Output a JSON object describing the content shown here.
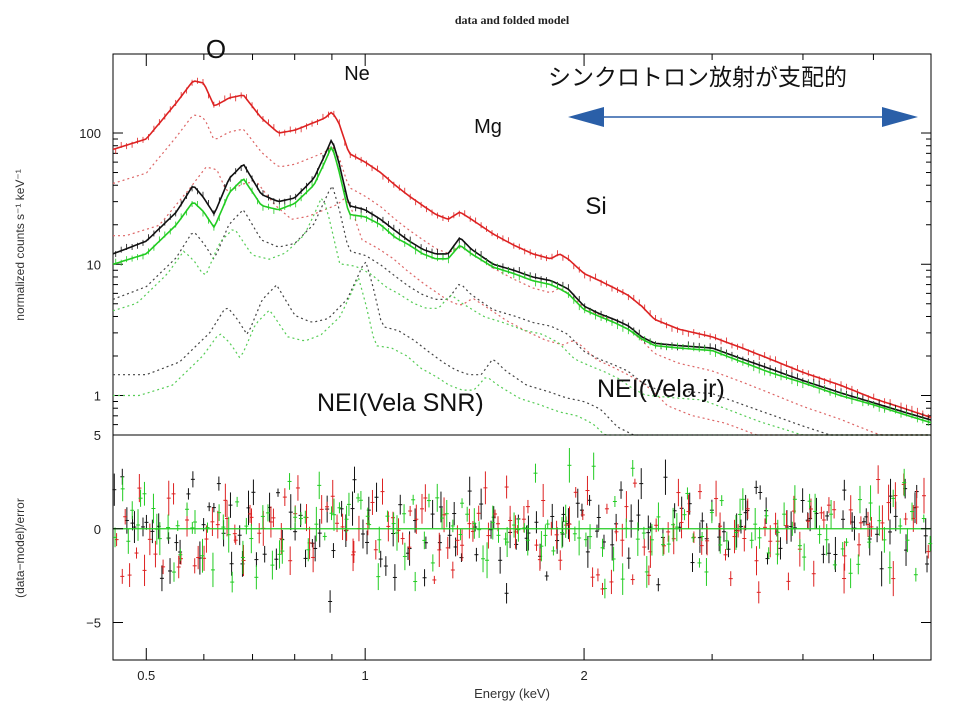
{
  "chart_data": [
    {
      "type": "line",
      "title": "data and folded model",
      "ylabel": "normalized counts s⁻¹ keV⁻¹",
      "y_scale": "log",
      "ylim": [
        0.5,
        400
      ],
      "xlim": [
        0.45,
        6.0
      ],
      "x_scale": "log",
      "y_ticks": [
        {
          "value": 1,
          "label": "1"
        },
        {
          "value": 10,
          "label": "10"
        },
        {
          "value": 100,
          "label": "100"
        }
      ],
      "grid": false,
      "series": [
        {
          "color": "#dd2222",
          "x": [
            0.45,
            0.5,
            0.55,
            0.58,
            0.6,
            0.62,
            0.65,
            0.68,
            0.72,
            0.76,
            0.8,
            0.85,
            0.88,
            0.9,
            0.92,
            0.95,
            1.0,
            1.05,
            1.1,
            1.15,
            1.2,
            1.25,
            1.3,
            1.35,
            1.4,
            1.5,
            1.6,
            1.7,
            1.8,
            1.85,
            1.9,
            2.0,
            2.1,
            2.2,
            2.3,
            2.4,
            2.5,
            2.7,
            3.0,
            3.3,
            3.6,
            4.0,
            4.5,
            5.0,
            5.5,
            6.0
          ],
          "values": [
            75,
            90,
            170,
            250,
            240,
            160,
            185,
            195,
            130,
            100,
            105,
            120,
            130,
            145,
            120,
            70,
            60,
            50,
            40,
            33,
            28,
            24,
            22,
            25,
            22,
            17,
            14,
            12,
            11,
            12,
            11,
            8.5,
            7.5,
            6.6,
            5.8,
            4.8,
            3.8,
            3.2,
            2.8,
            2.3,
            1.9,
            1.5,
            1.2,
            0.95,
            0.8,
            0.68
          ]
        },
        {
          "color": "#111111",
          "x": [
            0.45,
            0.5,
            0.55,
            0.58,
            0.6,
            0.62,
            0.65,
            0.68,
            0.72,
            0.76,
            0.8,
            0.85,
            0.88,
            0.9,
            0.92,
            0.95,
            1.0,
            1.05,
            1.1,
            1.15,
            1.2,
            1.25,
            1.3,
            1.35,
            1.4,
            1.5,
            1.6,
            1.7,
            1.8,
            1.85,
            1.9,
            2.0,
            2.1,
            2.2,
            2.3,
            2.4,
            2.5,
            2.7,
            3.0,
            3.3,
            3.6,
            4.0,
            4.5,
            5.0,
            5.5,
            6.0
          ],
          "values": [
            12,
            15,
            25,
            40,
            32,
            24,
            45,
            58,
            34,
            30,
            32,
            45,
            68,
            90,
            60,
            28,
            26,
            22,
            18,
            15,
            13,
            12,
            12,
            16,
            13,
            10,
            9,
            8,
            7.5,
            7,
            6.5,
            4.8,
            4.2,
            3.8,
            3.4,
            2.8,
            2.5,
            2.4,
            2.3,
            1.9,
            1.6,
            1.3,
            1.05,
            0.88,
            0.75,
            0.65
          ]
        },
        {
          "color": "#22cc22",
          "x": [
            0.45,
            0.5,
            0.55,
            0.58,
            0.6,
            0.62,
            0.65,
            0.68,
            0.72,
            0.76,
            0.8,
            0.85,
            0.88,
            0.9,
            0.92,
            0.95,
            1.0,
            1.05,
            1.1,
            1.15,
            1.2,
            1.25,
            1.3,
            1.35,
            1.4,
            1.5,
            1.6,
            1.7,
            1.8,
            1.85,
            1.9,
            2.0,
            2.1,
            2.2,
            2.3,
            2.4,
            2.5,
            2.7,
            3.0,
            3.3,
            3.6,
            4.0,
            4.5,
            5.0,
            5.5,
            6.0
          ],
          "values": [
            10,
            12,
            20,
            30,
            25,
            19,
            35,
            45,
            28,
            26,
            29,
            40,
            60,
            80,
            52,
            24,
            23,
            20,
            16,
            14,
            12,
            11,
            11,
            14,
            12,
            9.5,
            8.5,
            7.5,
            7,
            6.5,
            6,
            4.5,
            4,
            3.6,
            3.2,
            2.7,
            2.4,
            2.3,
            2.2,
            1.8,
            1.5,
            1.25,
            1.0,
            0.85,
            0.72,
            0.62
          ]
        }
      ],
      "annotations": [
        {
          "text": "O"
        },
        {
          "text": "Ne"
        },
        {
          "text": "Mg"
        },
        {
          "text": "Si"
        },
        {
          "text": "シンクロトロン放射が支配的"
        },
        {
          "text": "NEI(Vela SNR)"
        },
        {
          "text": "NEI(Vela jr)"
        }
      ]
    },
    {
      "type": "scatter",
      "ylabel": "(data−model)/error",
      "xlabel": "Energy (keV)",
      "x_scale": "log",
      "xlim": [
        0.45,
        6.0
      ],
      "ylim": [
        -7,
        5
      ],
      "y_ticks": [
        {
          "value": 5,
          "label": "5"
        },
        {
          "value": 0,
          "label": "0"
        },
        {
          "value": -5,
          "label": "−5"
        }
      ],
      "x_ticks": [
        {
          "value": 0.5,
          "label": "0.5"
        },
        {
          "value": 1,
          "label": "1"
        },
        {
          "value": 2,
          "label": "2"
        }
      ],
      "zero_line_color": "#22cc22",
      "series_colors": [
        "#111111",
        "#dd2222",
        "#22cc22"
      ],
      "residual_spread": 2.2
    }
  ]
}
